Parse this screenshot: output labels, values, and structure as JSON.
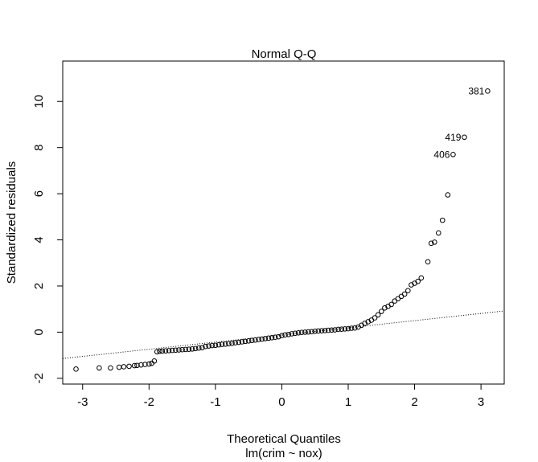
{
  "chart_data": {
    "type": "scatter",
    "title": "Normal Q-Q",
    "xlabel": "Theoretical Quantiles",
    "subtitle": "lm(crim ~ nox)",
    "ylabel": "Standardized residuals",
    "xlim": [
      -3.3,
      3.35
    ],
    "ylim": [
      -2.25,
      11.75
    ],
    "x_ticks": [
      -3,
      -2,
      -1,
      0,
      1,
      2,
      3
    ],
    "y_ticks": [
      -2,
      0,
      2,
      4,
      6,
      8,
      10
    ],
    "grid": false,
    "reference_line": {
      "style": "dotted",
      "intercept": -0.12,
      "slope": 0.31
    },
    "highlighted_points": [
      {
        "label": "381",
        "x": 3.1,
        "y": 10.45
      },
      {
        "label": "419",
        "x": 2.75,
        "y": 8.45
      },
      {
        "label": "406",
        "x": 2.58,
        "y": 7.7
      }
    ],
    "points": [
      [
        -3.1,
        -1.6
      ],
      [
        -2.75,
        -1.55
      ],
      [
        -2.58,
        -1.55
      ],
      [
        -2.45,
        -1.52
      ],
      [
        -2.38,
        -1.5
      ],
      [
        -2.3,
        -1.48
      ],
      [
        -2.22,
        -1.45
      ],
      [
        -2.18,
        -1.44
      ],
      [
        -2.12,
        -1.42
      ],
      [
        -2.06,
        -1.4
      ],
      [
        -2.0,
        -1.38
      ],
      [
        -1.96,
        -1.35
      ],
      [
        -1.92,
        -1.25
      ],
      [
        -1.88,
        -0.85
      ],
      [
        -1.84,
        -0.83
      ],
      [
        -1.8,
        -0.82
      ],
      [
        -1.75,
        -0.81
      ],
      [
        -1.7,
        -0.8
      ],
      [
        -1.65,
        -0.79
      ],
      [
        -1.6,
        -0.78
      ],
      [
        -1.55,
        -0.77
      ],
      [
        -1.5,
        -0.76
      ],
      [
        -1.45,
        -0.75
      ],
      [
        -1.4,
        -0.74
      ],
      [
        -1.35,
        -0.73
      ],
      [
        -1.3,
        -0.71
      ],
      [
        -1.25,
        -0.69
      ],
      [
        -1.2,
        -0.67
      ],
      [
        -1.15,
        -0.62
      ],
      [
        -1.1,
        -0.6
      ],
      [
        -1.05,
        -0.58
      ],
      [
        -1.0,
        -0.57
      ],
      [
        -0.95,
        -0.55
      ],
      [
        -0.9,
        -0.53
      ],
      [
        -0.85,
        -0.52
      ],
      [
        -0.8,
        -0.5
      ],
      [
        -0.75,
        -0.48
      ],
      [
        -0.7,
        -0.46
      ],
      [
        -0.65,
        -0.44
      ],
      [
        -0.6,
        -0.42
      ],
      [
        -0.55,
        -0.4
      ],
      [
        -0.5,
        -0.38
      ],
      [
        -0.45,
        -0.36
      ],
      [
        -0.4,
        -0.34
      ],
      [
        -0.35,
        -0.32
      ],
      [
        -0.3,
        -0.3
      ],
      [
        -0.25,
        -0.28
      ],
      [
        -0.2,
        -0.26
      ],
      [
        -0.15,
        -0.24
      ],
      [
        -0.1,
        -0.22
      ],
      [
        -0.05,
        -0.2
      ],
      [
        0.0,
        -0.15
      ],
      [
        0.05,
        -0.12
      ],
      [
        0.1,
        -0.1
      ],
      [
        0.15,
        -0.07
      ],
      [
        0.2,
        -0.05
      ],
      [
        0.25,
        -0.03
      ],
      [
        0.3,
        -0.01
      ],
      [
        0.35,
        0.0
      ],
      [
        0.4,
        0.01
      ],
      [
        0.45,
        0.02
      ],
      [
        0.5,
        0.04
      ],
      [
        0.55,
        0.05
      ],
      [
        0.6,
        0.06
      ],
      [
        0.65,
        0.07
      ],
      [
        0.7,
        0.08
      ],
      [
        0.75,
        0.09
      ],
      [
        0.8,
        0.1
      ],
      [
        0.85,
        0.12
      ],
      [
        0.9,
        0.13
      ],
      [
        0.95,
        0.14
      ],
      [
        1.0,
        0.15
      ],
      [
        1.05,
        0.17
      ],
      [
        1.1,
        0.18
      ],
      [
        1.15,
        0.22
      ],
      [
        1.2,
        0.3
      ],
      [
        1.25,
        0.38
      ],
      [
        1.3,
        0.45
      ],
      [
        1.35,
        0.52
      ],
      [
        1.4,
        0.62
      ],
      [
        1.45,
        0.75
      ],
      [
        1.5,
        0.9
      ],
      [
        1.55,
        1.05
      ],
      [
        1.6,
        1.12
      ],
      [
        1.65,
        1.2
      ],
      [
        1.7,
        1.35
      ],
      [
        1.75,
        1.45
      ],
      [
        1.8,
        1.55
      ],
      [
        1.85,
        1.65
      ],
      [
        1.9,
        1.8
      ],
      [
        1.95,
        2.05
      ],
      [
        2.0,
        2.12
      ],
      [
        2.05,
        2.2
      ],
      [
        2.1,
        2.35
      ],
      [
        2.2,
        3.05
      ],
      [
        2.25,
        3.85
      ],
      [
        2.3,
        3.9
      ],
      [
        2.36,
        4.3
      ],
      [
        2.42,
        4.85
      ],
      [
        2.5,
        5.95
      ]
    ]
  }
}
